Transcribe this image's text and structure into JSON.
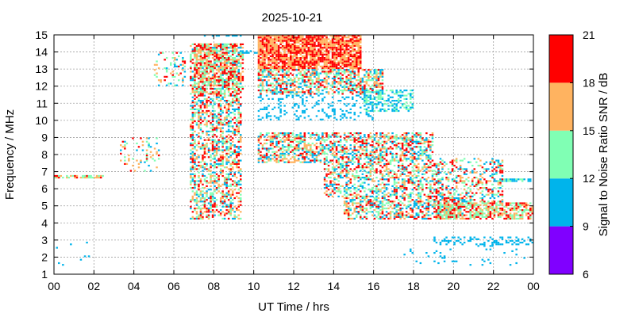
{
  "chart_data": {
    "type": "heatmap",
    "title": "2025-10-21",
    "xlabel": "UT Time / hrs",
    "ylabel": "Frequency / MHz",
    "xlim": [
      0,
      24
    ],
    "ylim": [
      1,
      15
    ],
    "x_ticks": [
      "00",
      "02",
      "04",
      "06",
      "08",
      "10",
      "12",
      "14",
      "16",
      "18",
      "20",
      "22",
      "00"
    ],
    "y_ticks": [
      "1",
      "2",
      "3",
      "4",
      "5",
      "6",
      "7",
      "8",
      "9",
      "10",
      "11",
      "12",
      "13",
      "14",
      "15"
    ],
    "grid": true,
    "colorbar": {
      "label": "Signal to Noise Ratio SNR / dB",
      "ticks": [
        "6",
        "9",
        "12",
        "15",
        "18",
        "21"
      ],
      "range": [
        6,
        21
      ],
      "bands": [
        {
          "from": 6,
          "to": 9,
          "color": "#8000ff"
        },
        {
          "from": 9,
          "to": 12,
          "color": "#00b4eb"
        },
        {
          "from": 12,
          "to": 15,
          "color": "#80ffb4"
        },
        {
          "from": 15,
          "to": 18,
          "color": "#ffb360"
        },
        {
          "from": 18,
          "to": 21,
          "color": "#ff0000"
        }
      ]
    },
    "regions": [
      {
        "t": [
          0.0,
          2.5
        ],
        "f": [
          6.6,
          6.8
        ],
        "snr": [
          12,
          20
        ],
        "density": 0.75
      },
      {
        "t": [
          0.0,
          2.0
        ],
        "f": [
          1.5,
          3.2
        ],
        "snr": [
          9,
          12
        ],
        "density": 0.03
      },
      {
        "t": [
          3.3,
          5.3
        ],
        "f": [
          7.0,
          9.0
        ],
        "snr": [
          9,
          20
        ],
        "density": 0.15
      },
      {
        "t": [
          5.0,
          6.6
        ],
        "f": [
          12.0,
          14.0
        ],
        "snr": [
          9,
          20
        ],
        "density": 0.2
      },
      {
        "t": [
          6.8,
          9.4
        ],
        "f": [
          4.2,
          14.5
        ],
        "snr": [
          9,
          21
        ],
        "density": 0.5
      },
      {
        "t": [
          7.0,
          9.5
        ],
        "f": [
          11.5,
          14.5
        ],
        "snr": [
          12,
          21
        ],
        "density": 0.55
      },
      {
        "t": [
          7.5,
          9.5
        ],
        "f": [
          14.9,
          15.0
        ],
        "snr": [
          9,
          12
        ],
        "density": 0.5
      },
      {
        "t": [
          9.2,
          10.2
        ],
        "f": [
          13.9,
          14.1
        ],
        "snr": [
          9,
          12
        ],
        "density": 0.5
      },
      {
        "t": [
          10.2,
          15.4
        ],
        "f": [
          13.0,
          15.0
        ],
        "snr": [
          15,
          21
        ],
        "density": 0.85
      },
      {
        "t": [
          10.2,
          16.5
        ],
        "f": [
          11.5,
          13.0
        ],
        "snr": [
          9,
          21
        ],
        "density": 0.6
      },
      {
        "t": [
          10.2,
          16.0
        ],
        "f": [
          10.0,
          11.5
        ],
        "snr": [
          9,
          12
        ],
        "density": 0.2
      },
      {
        "t": [
          15.5,
          18.0
        ],
        "f": [
          10.5,
          11.8
        ],
        "snr": [
          9,
          15
        ],
        "density": 0.45
      },
      {
        "t": [
          10.2,
          19.0
        ],
        "f": [
          7.5,
          9.3
        ],
        "snr": [
          9,
          21
        ],
        "density": 0.55
      },
      {
        "t": [
          13.5,
          19.5
        ],
        "f": [
          5.5,
          7.5
        ],
        "snr": [
          9,
          21
        ],
        "density": 0.45
      },
      {
        "t": [
          14.5,
          20.5
        ],
        "f": [
          4.2,
          5.5
        ],
        "snr": [
          9,
          21
        ],
        "density": 0.5
      },
      {
        "t": [
          19.0,
          24.0
        ],
        "f": [
          4.2,
          5.2
        ],
        "snr": [
          12,
          21
        ],
        "density": 0.65
      },
      {
        "t": [
          19.0,
          22.5
        ],
        "f": [
          5.2,
          7.8
        ],
        "snr": [
          9,
          21
        ],
        "density": 0.35
      },
      {
        "t": [
          22.0,
          24.0
        ],
        "f": [
          6.4,
          6.6
        ],
        "snr": [
          9,
          15
        ],
        "density": 0.75
      },
      {
        "t": [
          19.0,
          24.0
        ],
        "f": [
          2.7,
          3.2
        ],
        "snr": [
          9,
          12
        ],
        "density": 0.3
      },
      {
        "t": [
          17.5,
          24.0
        ],
        "f": [
          1.5,
          2.7
        ],
        "snr": [
          9,
          12
        ],
        "density": 0.04
      }
    ]
  }
}
